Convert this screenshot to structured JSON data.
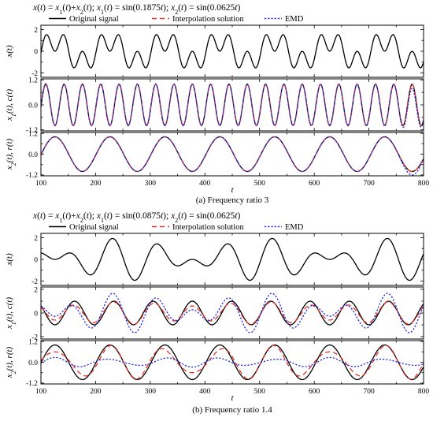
{
  "chart_data": [
    {
      "type": "line",
      "title": "x(t) = x1(t)+x2(t); x1(t) = sin(0.1875t); x2(t) = sin(0.0625t)",
      "caption": "(a) Frequency ratio 3",
      "xlabel": "t",
      "xlim": [
        100,
        800
      ],
      "x_ticks": [
        "100",
        "200",
        "300",
        "400",
        "500",
        "600",
        "700",
        "800"
      ],
      "x_domain": {
        "start": 100,
        "end": 800,
        "step": 2
      },
      "legend": {
        "placement": "top",
        "entries": [
          {
            "name": "Original signal",
            "color": "#000000",
            "style": "solid"
          },
          {
            "name": "Interpolation solution",
            "color": "#e8312a",
            "style": "dashed"
          },
          {
            "name": "EMD",
            "color": "#2a2ad8",
            "style": "dotted"
          }
        ]
      },
      "panels": [
        {
          "ylabel": "x(t)",
          "ylim": [
            -2.4,
            2.4
          ],
          "y_ticks": [
            "2",
            "0",
            "-2"
          ],
          "series": [
            {
              "name": "Original signal",
              "color": "#000000",
              "style": "solid",
              "components": [
                {
                  "amp": 1,
                  "omega": 0.1875
                },
                {
                  "amp": 1,
                  "omega": 0.0625
                }
              ]
            }
          ]
        },
        {
          "ylabel": "x1(t), c(t)",
          "ylim": [
            -1.25,
            1.25
          ],
          "y_ticks": [
            "1.2",
            "0.0",
            "-1.2"
          ],
          "series": [
            {
              "name": "Original signal",
              "color": "#000000",
              "style": "solid",
              "components": [
                {
                  "amp": 1,
                  "omega": 0.1875
                }
              ]
            },
            {
              "name": "Interpolation solution",
              "color": "#e8312a",
              "style": "dashed",
              "components": [
                {
                  "amp": 1,
                  "omega": 0.1875
                }
              ]
            },
            {
              "name": "EMD",
              "color": "#2a2ad8",
              "style": "dotted",
              "components": [
                {
                  "amp": 1,
                  "omega": 0.1875
                }
              ],
              "end_effect": true
            }
          ]
        },
        {
          "ylabel": "x2(t), r(t)",
          "ylim": [
            -1.25,
            1.25
          ],
          "y_ticks": [
            "1.2",
            "0.0",
            "-1.2"
          ],
          "series": [
            {
              "name": "Original signal",
              "color": "#000000",
              "style": "solid",
              "components": [
                {
                  "amp": 1,
                  "omega": 0.0625
                }
              ]
            },
            {
              "name": "Interpolation solution",
              "color": "#e8312a",
              "style": "dashed",
              "components": [
                {
                  "amp": 1,
                  "omega": 0.0625
                }
              ]
            },
            {
              "name": "EMD",
              "color": "#2a2ad8",
              "style": "dotted",
              "components": [
                {
                  "amp": 1,
                  "omega": 0.0625
                }
              ],
              "end_effect": true
            }
          ]
        }
      ]
    },
    {
      "type": "line",
      "title": "x(t) = x1(t)+x2(t); x1(t) = sin(0.0875t); x2(t) = sin(0.0625t)",
      "caption": "(b) Frequency ratio 1.4",
      "xlabel": "t",
      "xlim": [
        100,
        800
      ],
      "x_ticks": [
        "100",
        "200",
        "300",
        "400",
        "500",
        "600",
        "700",
        "800"
      ],
      "x_domain": {
        "start": 100,
        "end": 800,
        "step": 2
      },
      "legend": {
        "placement": "top",
        "entries": [
          {
            "name": "Original signal",
            "color": "#000000",
            "style": "solid"
          },
          {
            "name": "Interpolation solution",
            "color": "#e8312a",
            "style": "dashed"
          },
          {
            "name": "EMD",
            "color": "#2a2ad8",
            "style": "dotted"
          }
        ]
      },
      "panels": [
        {
          "ylabel": "x(t)",
          "ylim": [
            -2.4,
            2.4
          ],
          "y_ticks": [
            "2",
            "0",
            "-2"
          ],
          "series": [
            {
              "name": "Original signal",
              "color": "#000000",
              "style": "solid",
              "components": [
                {
                  "amp": 1,
                  "omega": 0.0875
                },
                {
                  "amp": 1,
                  "omega": 0.0625
                }
              ]
            }
          ]
        },
        {
          "ylabel": "x1(t), c(t)",
          "ylim": [
            -2.2,
            2.2
          ],
          "y_ticks": [
            "2",
            "0",
            "-2"
          ],
          "series": [
            {
              "name": "Original signal",
              "color": "#000000",
              "style": "solid",
              "components": [
                {
                  "amp": 1,
                  "omega": 0.0875
                }
              ]
            },
            {
              "name": "Interpolation solution",
              "color": "#e8312a",
              "style": "dashed",
              "components": [
                {
                  "amp": 0.78,
                  "omega": 0.0875
                },
                {
                  "amp": 0.18,
                  "omega": 0.0625
                }
              ]
            },
            {
              "name": "EMD",
              "color": "#2a2ad8",
              "style": "dotted",
              "components": [
                {
                  "amp": 1,
                  "omega": 0.0875
                },
                {
                  "amp": 0.72,
                  "omega": 0.0625
                }
              ]
            }
          ]
        },
        {
          "ylabel": "x2(t), r(t)",
          "ylim": [
            -1.25,
            1.25
          ],
          "y_ticks": [
            "1.2",
            "0.0",
            "-1.2"
          ],
          "series": [
            {
              "name": "Original signal",
              "color": "#000000",
              "style": "solid",
              "components": [
                {
                  "amp": 1,
                  "omega": 0.0625
                }
              ]
            },
            {
              "name": "Interpolation solution",
              "color": "#e8312a",
              "style": "dashed",
              "components": [
                {
                  "amp": 0.8,
                  "omega": 0.0625
                },
                {
                  "amp": 0.2,
                  "omega": 0.0875
                }
              ]
            },
            {
              "name": "EMD",
              "color": "#2a2ad8",
              "style": "dotted",
              "components": [
                {
                  "amp": 0.22,
                  "omega": 0.0625
                },
                {
                  "amp": -0.06,
                  "omega": 0.0875
                }
              ]
            }
          ]
        }
      ]
    }
  ]
}
